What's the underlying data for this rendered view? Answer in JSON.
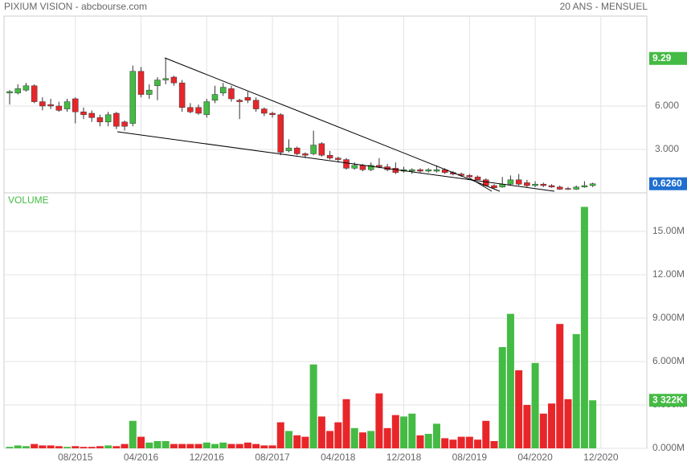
{
  "chart_data": {
    "type": "candlestick",
    "title": "PIXIUM VISION - abcbourse.com",
    "subtitle": "20 ANS - MENSUEL",
    "volume_title": "VOLUME",
    "categories": [
      null,
      null,
      null,
      null,
      null,
      null,
      null,
      null,
      "08/2015",
      null,
      null,
      null,
      null,
      null,
      null,
      null,
      "04/2016",
      null,
      null,
      null,
      null,
      null,
      null,
      null,
      "12/2016",
      null,
      null,
      null,
      null,
      null,
      null,
      null,
      "08/2017",
      null,
      null,
      null,
      null,
      null,
      null,
      null,
      "04/2018",
      null,
      null,
      null,
      null,
      null,
      null,
      null,
      "12/2018",
      null,
      null,
      null,
      null,
      null,
      null,
      null,
      "08/2019",
      null,
      null,
      null,
      null,
      null,
      null,
      null,
      "04/2020",
      null,
      null,
      null,
      null,
      null,
      null,
      null,
      "12/2020"
    ],
    "open": [
      6.9,
      6.9,
      7.1,
      7.4,
      6.3,
      6.1,
      6.0,
      5.8,
      6.5,
      5.6,
      5.5,
      5.2,
      4.9,
      5.5,
      4.9,
      4.8,
      8.4,
      6.8,
      7.4,
      7.8,
      8.0,
      7.6,
      5.9,
      5.9,
      5.4,
      6.4,
      6.9,
      7.2,
      6.4,
      6.6,
      6.4,
      5.8,
      5.5,
      5.4,
      2.9,
      3.1,
      2.7,
      2.7,
      3.4,
      2.6,
      2.4,
      2.3,
      1.7,
      1.9,
      1.6,
      1.9,
      1.8,
      1.7,
      1.5,
      1.5,
      1.6,
      1.5,
      1.5,
      1.6,
      1.4,
      1.3,
      1.2,
      1.1,
      0.9,
      0.5,
      0.4,
      0.6,
      0.9,
      0.7,
      0.5,
      0.6,
      0.5,
      0.4,
      0.3,
      0.25,
      0.4,
      0.5,
      null
    ],
    "high": [
      7.1,
      7.5,
      7.6,
      7.5,
      6.6,
      6.5,
      6.3,
      6.5,
      6.6,
      5.9,
      5.7,
      5.4,
      5.6,
      5.6,
      5.0,
      8.8,
      8.7,
      7.5,
      8.0,
      9.29,
      8.1,
      7.8,
      6.2,
      6.1,
      6.5,
      7.4,
      7.6,
      7.4,
      6.5,
      7.0,
      6.6,
      5.9,
      5.6,
      5.5,
      3.7,
      3.2,
      2.8,
      4.3,
      3.5,
      2.9,
      2.5,
      2.4,
      2.1,
      2.0,
      2.1,
      2.4,
      2.0,
      2.1,
      1.8,
      1.7,
      1.7,
      1.7,
      1.9,
      1.7,
      1.5,
      1.4,
      1.3,
      1.2,
      1.0,
      0.6,
      1.1,
      1.2,
      1.3,
      0.9,
      0.8,
      0.7,
      0.6,
      0.5,
      0.4,
      0.5,
      0.8,
      0.7,
      null
    ],
    "low": [
      6.1,
      6.8,
      7.0,
      6.2,
      5.7,
      5.8,
      5.6,
      5.6,
      4.8,
      5.1,
      4.9,
      4.6,
      4.6,
      4.4,
      4.3,
      4.6,
      6.6,
      6.5,
      6.4,
      7.5,
      7.4,
      5.6,
      5.5,
      5.4,
      5.2,
      6.2,
      6.7,
      6.3,
      5.1,
      6.2,
      5.6,
      5.3,
      5.2,
      2.6,
      2.8,
      2.6,
      2.4,
      2.6,
      2.5,
      2.3,
      2.1,
      1.6,
      1.6,
      1.5,
      1.5,
      1.7,
      1.5,
      1.3,
      1.4,
      1.3,
      1.4,
      1.4,
      1.4,
      1.3,
      1.2,
      1.1,
      1.0,
      0.9,
      0.45,
      0.3,
      0.35,
      0.5,
      0.5,
      0.4,
      0.4,
      0.4,
      0.35,
      0.2,
      0.2,
      0.2,
      0.35,
      0.4,
      null
    ],
    "close": [
      7.0,
      7.2,
      7.4,
      6.3,
      6.0,
      6.0,
      5.7,
      6.3,
      5.6,
      5.4,
      5.2,
      4.9,
      5.4,
      4.6,
      4.6,
      8.4,
      6.8,
      7.1,
      7.8,
      7.9,
      7.6,
      5.9,
      5.6,
      5.5,
      6.3,
      6.8,
      7.3,
      6.5,
      6.3,
      6.4,
      5.8,
      5.5,
      5.4,
      2.8,
      3.1,
      2.7,
      2.6,
      3.3,
      2.6,
      2.4,
      2.3,
      1.7,
      1.9,
      1.6,
      1.9,
      1.8,
      1.6,
      1.4,
      1.6,
      1.6,
      1.5,
      1.6,
      1.6,
      1.4,
      1.3,
      1.2,
      1.1,
      0.9,
      0.5,
      0.35,
      0.6,
      0.9,
      0.6,
      0.5,
      0.6,
      0.5,
      0.4,
      0.25,
      0.25,
      0.4,
      0.5,
      0.626,
      null
    ],
    "volume": [
      0.1,
      0.2,
      0.15,
      0.3,
      0.2,
      0.2,
      0.15,
      0.1,
      0.15,
      0.1,
      0.1,
      0.15,
      0.2,
      0.15,
      0.3,
      1.9,
      0.8,
      0.4,
      0.5,
      0.5,
      0.3,
      0.3,
      0.3,
      0.3,
      0.4,
      0.3,
      0.4,
      0.3,
      0.3,
      0.4,
      0.3,
      0.2,
      0.2,
      1.8,
      1.2,
      0.9,
      0.8,
      5.8,
      2.2,
      1.2,
      1.8,
      3.4,
      1.4,
      1.1,
      1.2,
      3.8,
      1.4,
      2.3,
      2.2,
      2.4,
      0.9,
      1.0,
      1.7,
      0.7,
      0.6,
      0.8,
      0.8,
      0.6,
      1.9,
      0.5,
      7.0,
      9.3,
      5.4,
      3.0,
      5.9,
      2.4,
      3.1,
      8.6,
      3.4,
      7.9,
      16.7,
      3.322,
      null
    ],
    "up_color": "#44bb44",
    "down_color": "#e8262a",
    "last_price_color": "#1e6fd0",
    "ylim": [
      0,
      12.22
    ],
    "yticks": [
      {
        "value": 3,
        "label": "3.000"
      },
      {
        "value": 6,
        "label": "6.000"
      }
    ],
    "volume_ylim": [
      0,
      17.67
    ],
    "volume_yticks": [
      {
        "value": 0,
        "label": "0.000M"
      },
      {
        "value": 3,
        "label": "3.000M"
      },
      {
        "value": 6,
        "label": "6.000M"
      },
      {
        "value": 9,
        "label": "9.000M"
      },
      {
        "value": 12,
        "label": "12.00M"
      },
      {
        "value": 15,
        "label": "15.00M"
      }
    ],
    "high_marker": {
      "value": 9.29,
      "label": "9.29"
    },
    "last_price": {
      "value": 0.626,
      "label": "0.6260"
    },
    "last_volume": {
      "value": 3.322,
      "label": "3 322K"
    },
    "grid": true
  }
}
